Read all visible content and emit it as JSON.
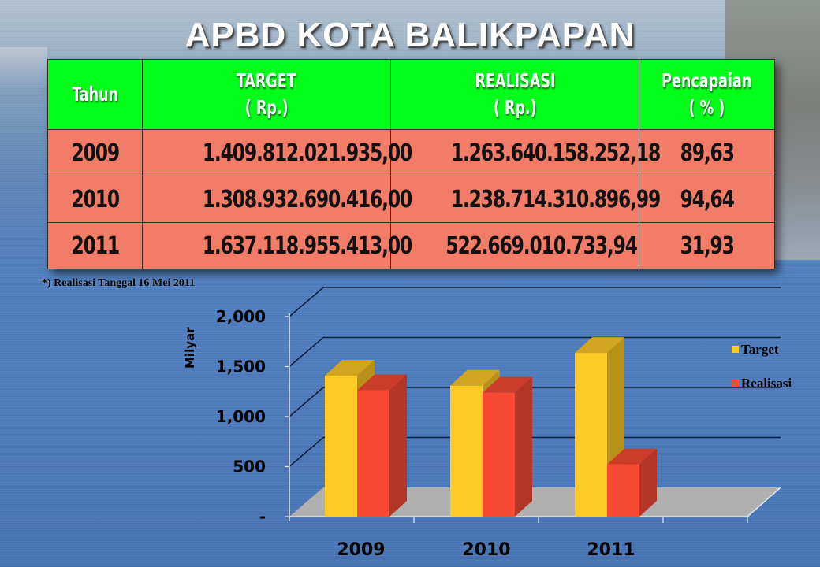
{
  "title": "APBD KOTA BALIKPAPAN",
  "table": {
    "headers": [
      {
        "line1": "Tahun",
        "line2": ""
      },
      {
        "line1": "TARGET",
        "line2": "( Rp.)"
      },
      {
        "line1": "REALISASI",
        "line2": "( Rp.)"
      },
      {
        "line1": "Pencapaian",
        "line2": "( % )"
      }
    ],
    "rows": [
      {
        "year": "2009",
        "target": "1.409.812.021.935,00",
        "realisasi": "1.263.640.158.252,18",
        "pencapaian": "89,63"
      },
      {
        "year": "2010",
        "target": "1.308.932.690.416,00",
        "realisasi": "1.238.714.310.896,99",
        "pencapaian": "94,64"
      },
      {
        "year": "2011",
        "target": "1.637.118.955.413,00",
        "realisasi": "522.669.010.733,94",
        "pencapaian": "31,93"
      }
    ]
  },
  "footnote": "*)  Realisasi Tanggal 16 Mei 2011",
  "colors": {
    "header_bg": "#00ff19",
    "row_bg": "#f27c68",
    "target": "#ffc926",
    "realisasi": "#f84a33",
    "floor": "#b0b0b0"
  },
  "chart_data": {
    "type": "bar",
    "style": "3d-clustered-column",
    "title": "",
    "xlabel": "",
    "ylabel": "Milyar",
    "categories": [
      "2009",
      "2010",
      "2011"
    ],
    "series": [
      {
        "name": "Target",
        "values": [
          1409.81,
          1308.93,
          1637.12
        ],
        "color": "#ffc926"
      },
      {
        "name": "Realisasi",
        "values": [
          1263.64,
          1238.71,
          522.67
        ],
        "color": "#f84a33"
      }
    ],
    "y_ticks": [
      "-",
      "500",
      "1,000",
      "1,500",
      "2,000"
    ],
    "ylim": [
      0,
      2000
    ],
    "grid": true,
    "legend_position": "right"
  }
}
